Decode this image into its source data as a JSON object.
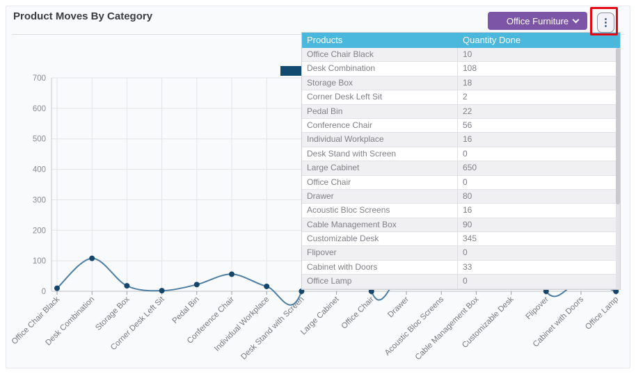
{
  "panel": {
    "title": "Product Moves By Category"
  },
  "toolbar": {
    "category_select": {
      "value": "Office Furniture"
    },
    "menu_button": {
      "icon": "kebab-vertical-icon",
      "glyph": "⋮"
    }
  },
  "annotation": {
    "type": "highlight-rectangle",
    "target": "kebab-menu-button",
    "color": "#e50812"
  },
  "overlay_table": {
    "columns": [
      "Products",
      "Quantity Done"
    ],
    "rows": [
      [
        "Office Chair Black",
        "10"
      ],
      [
        "Desk Combination",
        "108"
      ],
      [
        "Storage Box",
        "18"
      ],
      [
        "Corner Desk Left Sit",
        "2"
      ],
      [
        "Pedal Bin",
        "22"
      ],
      [
        "Conference Chair",
        "56"
      ],
      [
        "Individual Workplace",
        "16"
      ],
      [
        "Desk Stand with Screen",
        "0"
      ],
      [
        "Large Cabinet",
        "650"
      ],
      [
        "Office Chair",
        "0"
      ],
      [
        "Drawer",
        "80"
      ],
      [
        "Acoustic Bloc Screens",
        "16"
      ],
      [
        "Cable Management Box",
        "90"
      ],
      [
        "Customizable Desk",
        "345"
      ],
      [
        "Flipover",
        "0"
      ],
      [
        "Cabinet with Doors",
        "33"
      ],
      [
        "Office Lamp",
        "0"
      ]
    ]
  },
  "chart_data": {
    "type": "line",
    "title": "Product Moves By Category",
    "categories": [
      "Office Chair Black",
      "Desk Combination",
      "Storage Box",
      "Corner Desk Left Sit",
      "Pedal Bin",
      "Conference Chair",
      "Individual Workplace",
      "Desk Stand with Screen",
      "Large Cabinet",
      "Office Chair",
      "Drawer",
      "Acoustic Bloc Screens",
      "Cable Management Box",
      "Customizable Desk",
      "Flipover",
      "Cabinet with Doors",
      "Office Lamp"
    ],
    "series": [
      {
        "name": "Quantity Done",
        "values": [
          10,
          108,
          18,
          2,
          22,
          56,
          16,
          0,
          650,
          0,
          80,
          16,
          90,
          345,
          0,
          33,
          0
        ]
      }
    ],
    "xlabel": "",
    "ylabel": "",
    "ylim": [
      0,
      700
    ],
    "ytick_step": 100,
    "grid": true,
    "smooth": true,
    "legend": {
      "position": "top-center",
      "swatch_color": "#134a70",
      "label_visible": false
    },
    "line_color": "#4d7ea4",
    "point_color": "#17466b"
  },
  "colors": {
    "accent_purple": "#7d55a6",
    "table_header_blue": "#4ab7dc",
    "annotation_red": "#e50812",
    "panel_background": "#f9fafb",
    "row_stripe": "#f0f0f2"
  }
}
